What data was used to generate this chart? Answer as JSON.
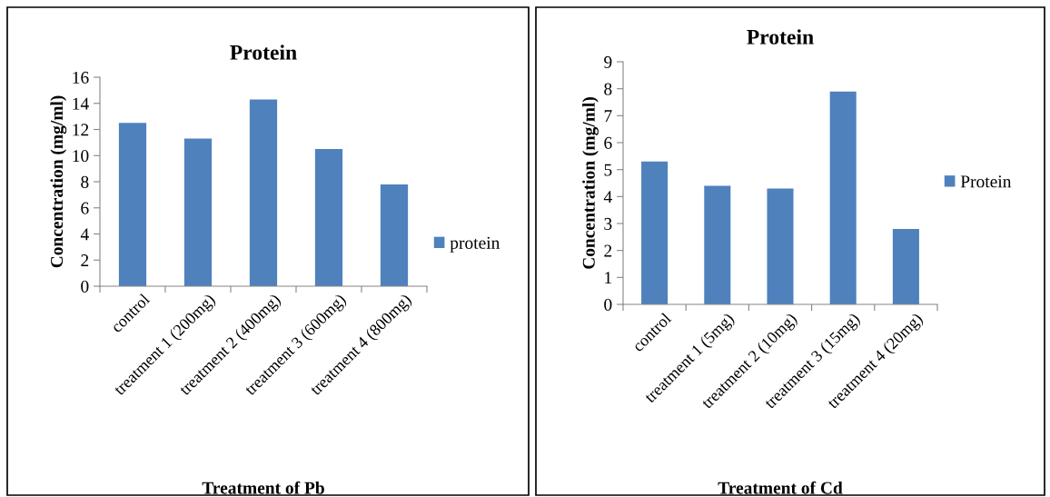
{
  "chart_data": [
    {
      "type": "bar",
      "title": "Protein",
      "xlabel": "Treatment of Pb",
      "ylabel": "Concentration (mg/ml)",
      "categories": [
        "control",
        "treatment 1 (200mg)",
        "treatment 2 (400mg)",
        "treatment 3 (600mg)",
        "treatment 4 (800mg)"
      ],
      "series": [
        {
          "name": "protein",
          "color": "#4f81bd",
          "values": [
            12.5,
            11.3,
            14.3,
            10.5,
            7.8
          ]
        }
      ],
      "ylim": [
        0,
        16
      ],
      "yticks": [
        0,
        2,
        4,
        6,
        8,
        10,
        12,
        14,
        16
      ],
      "grid": false,
      "legend": "right"
    },
    {
      "type": "bar",
      "title": "Protein",
      "xlabel": "Treatment of Cd",
      "ylabel": "Concentration (mg/ml)",
      "categories": [
        "control",
        "treatment 1 (5mg)",
        "treatment 2 (10mg)",
        "treatment 3 (15mg)",
        "treatment 4 (20mg)"
      ],
      "series": [
        {
          "name": "Protein",
          "color": "#4f81bd",
          "values": [
            5.3,
            4.4,
            4.3,
            7.9,
            2.8
          ]
        }
      ],
      "ylim": [
        0,
        9
      ],
      "yticks": [
        0,
        1,
        2,
        3,
        4,
        5,
        6,
        7,
        8,
        9
      ],
      "grid": false,
      "legend": "right"
    }
  ]
}
